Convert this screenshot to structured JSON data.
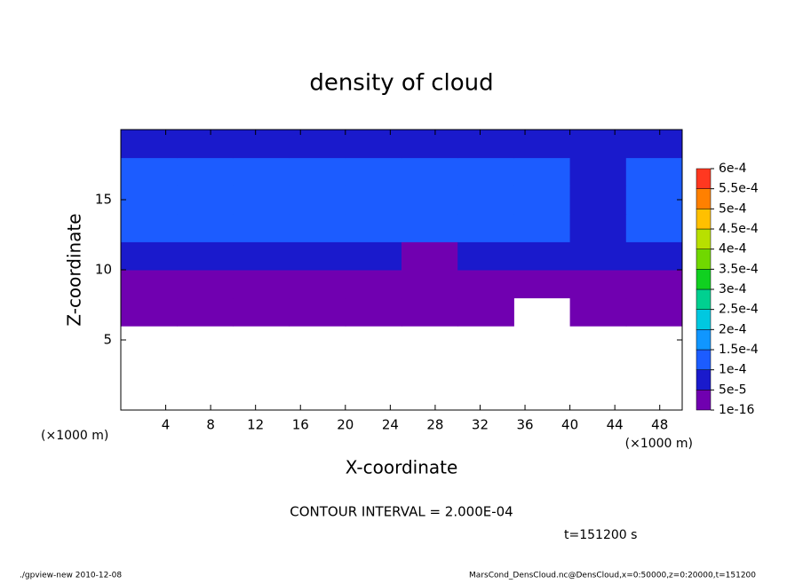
{
  "chart_data": {
    "type": "heatmap",
    "title": "density of cloud",
    "x_label": "X-coordinate",
    "y_label": "Z-coordinate",
    "x_unit": "(×1000 m)",
    "y_unit": "(×1000 m)",
    "contour_note": "CONTOUR INTERVAL = 2.000E-04",
    "time_label": "t=151200 s",
    "footer_left": "./gpview-new  2010-12-08",
    "footer_right": "MarsCond_DensCloud.nc@DensCloud,x=0:50000,z=0:20000,t=151200",
    "xlim": [
      0,
      50
    ],
    "ylim": [
      0,
      20
    ],
    "xticks": [
      4,
      8,
      12,
      16,
      20,
      24,
      28,
      32,
      36,
      40,
      44,
      48
    ],
    "yticks": [
      5,
      10,
      15
    ],
    "x_bins": [
      0,
      5,
      10,
      15,
      20,
      25,
      30,
      35,
      40,
      45,
      50
    ],
    "y_bins": [
      0,
      2,
      4,
      6,
      8,
      10,
      12,
      14,
      16,
      18,
      20
    ],
    "values": [
      [
        null,
        null,
        null,
        null,
        null,
        null,
        null,
        null,
        null,
        null
      ],
      [
        null,
        null,
        null,
        null,
        null,
        null,
        null,
        null,
        null,
        null
      ],
      [
        null,
        null,
        null,
        null,
        null,
        null,
        null,
        null,
        null,
        null
      ],
      [
        3e-05,
        3e-05,
        3e-05,
        3e-05,
        3e-05,
        3e-05,
        3e-05,
        null,
        3e-05,
        3e-05
      ],
      [
        3e-05,
        3e-05,
        3e-05,
        3e-05,
        3e-05,
        3e-05,
        3e-05,
        3e-05,
        3e-05,
        3e-05
      ],
      [
        6e-05,
        7e-05,
        6e-05,
        5.5e-05,
        6e-05,
        3e-05,
        6e-05,
        7e-05,
        6e-05,
        6e-05
      ],
      [
        0.00011,
        0.000105,
        0.00011,
        0.00011,
        0.00011,
        0.000105,
        0.000105,
        0.00011,
        6e-05,
        0.00011
      ],
      [
        0.00012,
        0.00012,
        0.00012,
        0.00012,
        0.00012,
        0.00012,
        0.00012,
        0.00012,
        7e-05,
        0.00012
      ],
      [
        0.000105,
        0.00011,
        0.00012,
        0.00012,
        0.00012,
        0.00011,
        0.00011,
        0.00012,
        6e-05,
        0.00012
      ],
      [
        6e-05,
        7e-05,
        6e-05,
        6e-05,
        6e-05,
        6e-05,
        6e-05,
        6e-05,
        6e-05,
        6e-05
      ]
    ],
    "levels": [
      {
        "value": 1e-16,
        "label": "1e-16"
      },
      {
        "value": 5e-05,
        "label": "5e-5"
      },
      {
        "value": 0.0001,
        "label": "1e-4"
      },
      {
        "value": 0.00015,
        "label": "1.5e-4"
      },
      {
        "value": 0.0002,
        "label": "2e-4"
      },
      {
        "value": 0.00025,
        "label": "2.5e-4"
      },
      {
        "value": 0.0003,
        "label": "3e-4"
      },
      {
        "value": 0.00035,
        "label": "3.5e-4"
      },
      {
        "value": 0.0004,
        "label": "4e-4"
      },
      {
        "value": 0.00045,
        "label": "4.5e-4"
      },
      {
        "value": 0.0005,
        "label": "5e-4"
      },
      {
        "value": 0.00055,
        "label": "5.5e-4"
      },
      {
        "value": 0.0006,
        "label": "6e-4"
      }
    ],
    "colors": [
      "#7000b0",
      "#1a1acc",
      "#1c5cff",
      "#1096ff",
      "#00c8e0",
      "#00d090",
      "#10d020",
      "#70d800",
      "#b8e000",
      "#ffc000",
      "#ff8000",
      "#ff3820"
    ]
  }
}
